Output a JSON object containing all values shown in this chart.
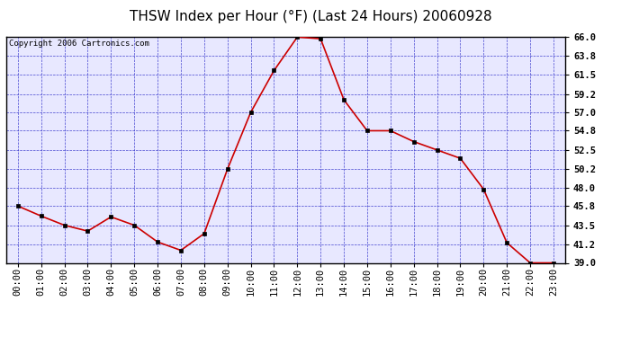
{
  "title": "THSW Index per Hour (°F) (Last 24 Hours) 20060928",
  "copyright": "Copyright 2006 Cartronics.com",
  "hours": [
    0,
    1,
    2,
    3,
    4,
    5,
    6,
    7,
    8,
    9,
    10,
    11,
    12,
    13,
    14,
    15,
    16,
    17,
    18,
    19,
    20,
    21,
    22,
    23
  ],
  "hour_labels": [
    "00:00",
    "01:00",
    "02:00",
    "03:00",
    "04:00",
    "05:00",
    "06:00",
    "07:00",
    "08:00",
    "09:00",
    "10:00",
    "11:00",
    "12:00",
    "13:00",
    "14:00",
    "15:00",
    "16:00",
    "17:00",
    "18:00",
    "19:00",
    "20:00",
    "21:00",
    "22:00",
    "23:00"
  ],
  "values": [
    45.8,
    44.6,
    43.5,
    42.8,
    44.5,
    43.5,
    41.5,
    40.5,
    42.5,
    50.2,
    57.0,
    62.0,
    66.0,
    65.8,
    58.5,
    54.8,
    54.8,
    53.5,
    52.5,
    51.5,
    47.8,
    41.4,
    39.0,
    39.0
  ],
  "ylim_min": 39.0,
  "ylim_max": 66.0,
  "yticks": [
    39.0,
    41.2,
    43.5,
    45.8,
    48.0,
    50.2,
    52.5,
    54.8,
    57.0,
    59.2,
    61.5,
    63.8,
    66.0
  ],
  "line_color": "#cc0000",
  "marker_color": "#000000",
  "bg_color": "#e8e8ff",
  "grid_color": "#3333cc",
  "border_color": "#000000",
  "title_color": "#000000",
  "title_fontsize": 11,
  "copyright_fontsize": 6.5,
  "tick_fontsize": 7.5,
  "marker_size": 2.5,
  "line_width": 1.2
}
